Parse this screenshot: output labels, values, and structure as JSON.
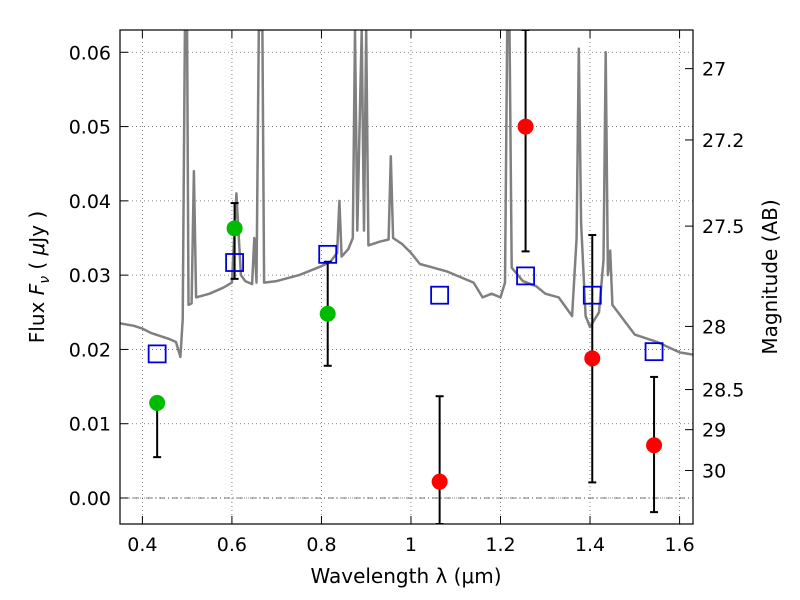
{
  "chart_data": {
    "type": "scatter",
    "xlabel": "Wavelength  λ (μm)",
    "ylabel": "Flux  F_ν  ( μJy )",
    "ylabel_parts": [
      "Flux ",
      "F",
      "ν",
      "  ( ",
      "μ",
      "Jy )"
    ],
    "y2label": "Magnitude (AB)",
    "xlim": [
      0.35,
      1.63
    ],
    "ylim": [
      -0.0035,
      0.063
    ],
    "grid": true,
    "x_ticks": [
      0.4,
      0.6,
      0.8,
      1.0,
      1.2,
      1.4,
      1.6
    ],
    "x_tick_labels": [
      "0.4",
      "0.6",
      "0.8",
      "1",
      "1.2",
      "1.4",
      "1.6"
    ],
    "y_ticks": [
      0.0,
      0.01,
      0.02,
      0.03,
      0.04,
      0.05,
      0.06
    ],
    "y_tick_labels": [
      "0.00",
      "0.01",
      "0.02",
      "0.03",
      "0.04",
      "0.05",
      "0.06"
    ],
    "y2_ticks": [
      {
        "label": "27",
        "flux": 0.0578
      },
      {
        "label": "27.2",
        "flux": 0.0482
      },
      {
        "label": "27.5",
        "flux": 0.0366
      },
      {
        "label": "28",
        "flux": 0.0231
      },
      {
        "label": "28.5",
        "flux": 0.0146
      },
      {
        "label": "29",
        "flux": 0.0092
      },
      {
        "label": "30",
        "flux": 0.0037
      }
    ],
    "colors": {
      "model": "#808080",
      "detection": "#00bb00",
      "nondetection": "#ff0000",
      "model_phot": "#0000dd",
      "errorbar": "#000000"
    },
    "model_spectrum": [
      [
        0.35,
        0.0235
      ],
      [
        0.38,
        0.0232
      ],
      [
        0.4,
        0.0228
      ],
      [
        0.42,
        0.0222
      ],
      [
        0.44,
        0.0218
      ],
      [
        0.46,
        0.0214
      ],
      [
        0.475,
        0.021
      ],
      [
        0.485,
        0.019
      ],
      [
        0.49,
        0.024
      ],
      [
        0.495,
        0.063
      ],
      [
        0.5,
        0.063
      ],
      [
        0.503,
        0.026
      ],
      [
        0.51,
        0.0262
      ],
      [
        0.515,
        0.044
      ],
      [
        0.52,
        0.027
      ],
      [
        0.55,
        0.0275
      ],
      [
        0.58,
        0.0283
      ],
      [
        0.6,
        0.029
      ],
      [
        0.61,
        0.041
      ],
      [
        0.62,
        0.03
      ],
      [
        0.63,
        0.0292
      ],
      [
        0.645,
        0.0288
      ],
      [
        0.65,
        0.035
      ],
      [
        0.655,
        0.029
      ],
      [
        0.66,
        0.063
      ],
      [
        0.668,
        0.063
      ],
      [
        0.672,
        0.029
      ],
      [
        0.7,
        0.0292
      ],
      [
        0.75,
        0.03
      ],
      [
        0.8,
        0.0312
      ],
      [
        0.82,
        0.0318
      ],
      [
        0.835,
        0.033
      ],
      [
        0.84,
        0.04
      ],
      [
        0.845,
        0.0325
      ],
      [
        0.86,
        0.0335
      ],
      [
        0.87,
        0.035
      ],
      [
        0.875,
        0.063
      ],
      [
        0.88,
        0.036
      ],
      [
        0.89,
        0.063
      ],
      [
        0.895,
        0.036
      ],
      [
        0.9,
        0.063
      ],
      [
        0.905,
        0.034
      ],
      [
        0.93,
        0.0345
      ],
      [
        0.95,
        0.0348
      ],
      [
        0.955,
        0.046
      ],
      [
        0.96,
        0.035
      ],
      [
        0.98,
        0.0342
      ],
      [
        1.0,
        0.033
      ],
      [
        1.02,
        0.0315
      ],
      [
        1.05,
        0.031
      ],
      [
        1.08,
        0.0305
      ],
      [
        1.1,
        0.03
      ],
      [
        1.14,
        0.029
      ],
      [
        1.16,
        0.027
      ],
      [
        1.18,
        0.0275
      ],
      [
        1.2,
        0.027
      ],
      [
        1.21,
        0.029
      ],
      [
        1.215,
        0.063
      ],
      [
        1.22,
        0.063
      ],
      [
        1.225,
        0.031
      ],
      [
        1.25,
        0.0292
      ],
      [
        1.28,
        0.0285
      ],
      [
        1.3,
        0.0275
      ],
      [
        1.33,
        0.027
      ],
      [
        1.36,
        0.0245
      ],
      [
        1.37,
        0.035
      ],
      [
        1.375,
        0.0605
      ],
      [
        1.38,
        0.037
      ],
      [
        1.39,
        0.0245
      ],
      [
        1.4,
        0.023
      ],
      [
        1.41,
        0.024
      ],
      [
        1.42,
        0.025
      ],
      [
        1.43,
        0.032
      ],
      [
        1.435,
        0.06
      ],
      [
        1.44,
        0.03
      ],
      [
        1.445,
        0.0333
      ],
      [
        1.45,
        0.026
      ],
      [
        1.5,
        0.022
      ],
      [
        1.55,
        0.021
      ],
      [
        1.6,
        0.0196
      ],
      [
        1.63,
        0.0193
      ]
    ],
    "series": [
      {
        "name": "detection",
        "marker": "circle",
        "points": [
          {
            "x": 0.433,
            "y": 0.0128,
            "yerr_low": 0.0055,
            "yerr_high": 0.0128
          },
          {
            "x": 0.606,
            "y": 0.0363,
            "yerr_low": 0.0295,
            "yerr_high": 0.0397
          },
          {
            "x": 0.814,
            "y": 0.0248,
            "yerr_low": 0.0178,
            "yerr_high": 0.0318
          }
        ]
      },
      {
        "name": "nondetection",
        "marker": "circle",
        "points": [
          {
            "x": 1.064,
            "y": 0.0022,
            "yerr_low": -0.0035,
            "yerr_high": 0.0137
          },
          {
            "x": 1.256,
            "y": 0.05,
            "yerr_low": 0.0332,
            "yerr_high": 0.063
          },
          {
            "x": 1.405,
            "y": 0.0188,
            "yerr_low": 0.0021,
            "yerr_high": 0.0354
          },
          {
            "x": 1.543,
            "y": 0.0071,
            "yerr_low": -0.0019,
            "yerr_high": 0.0163
          }
        ]
      },
      {
        "name": "model_phot",
        "marker": "square",
        "points": [
          {
            "x": 0.433,
            "y": 0.0194
          },
          {
            "x": 0.606,
            "y": 0.0317
          },
          {
            "x": 0.814,
            "y": 0.0328
          },
          {
            "x": 1.064,
            "y": 0.0273
          },
          {
            "x": 1.256,
            "y": 0.0299
          },
          {
            "x": 1.405,
            "y": 0.0273
          },
          {
            "x": 1.543,
            "y": 0.0197
          }
        ]
      }
    ]
  }
}
